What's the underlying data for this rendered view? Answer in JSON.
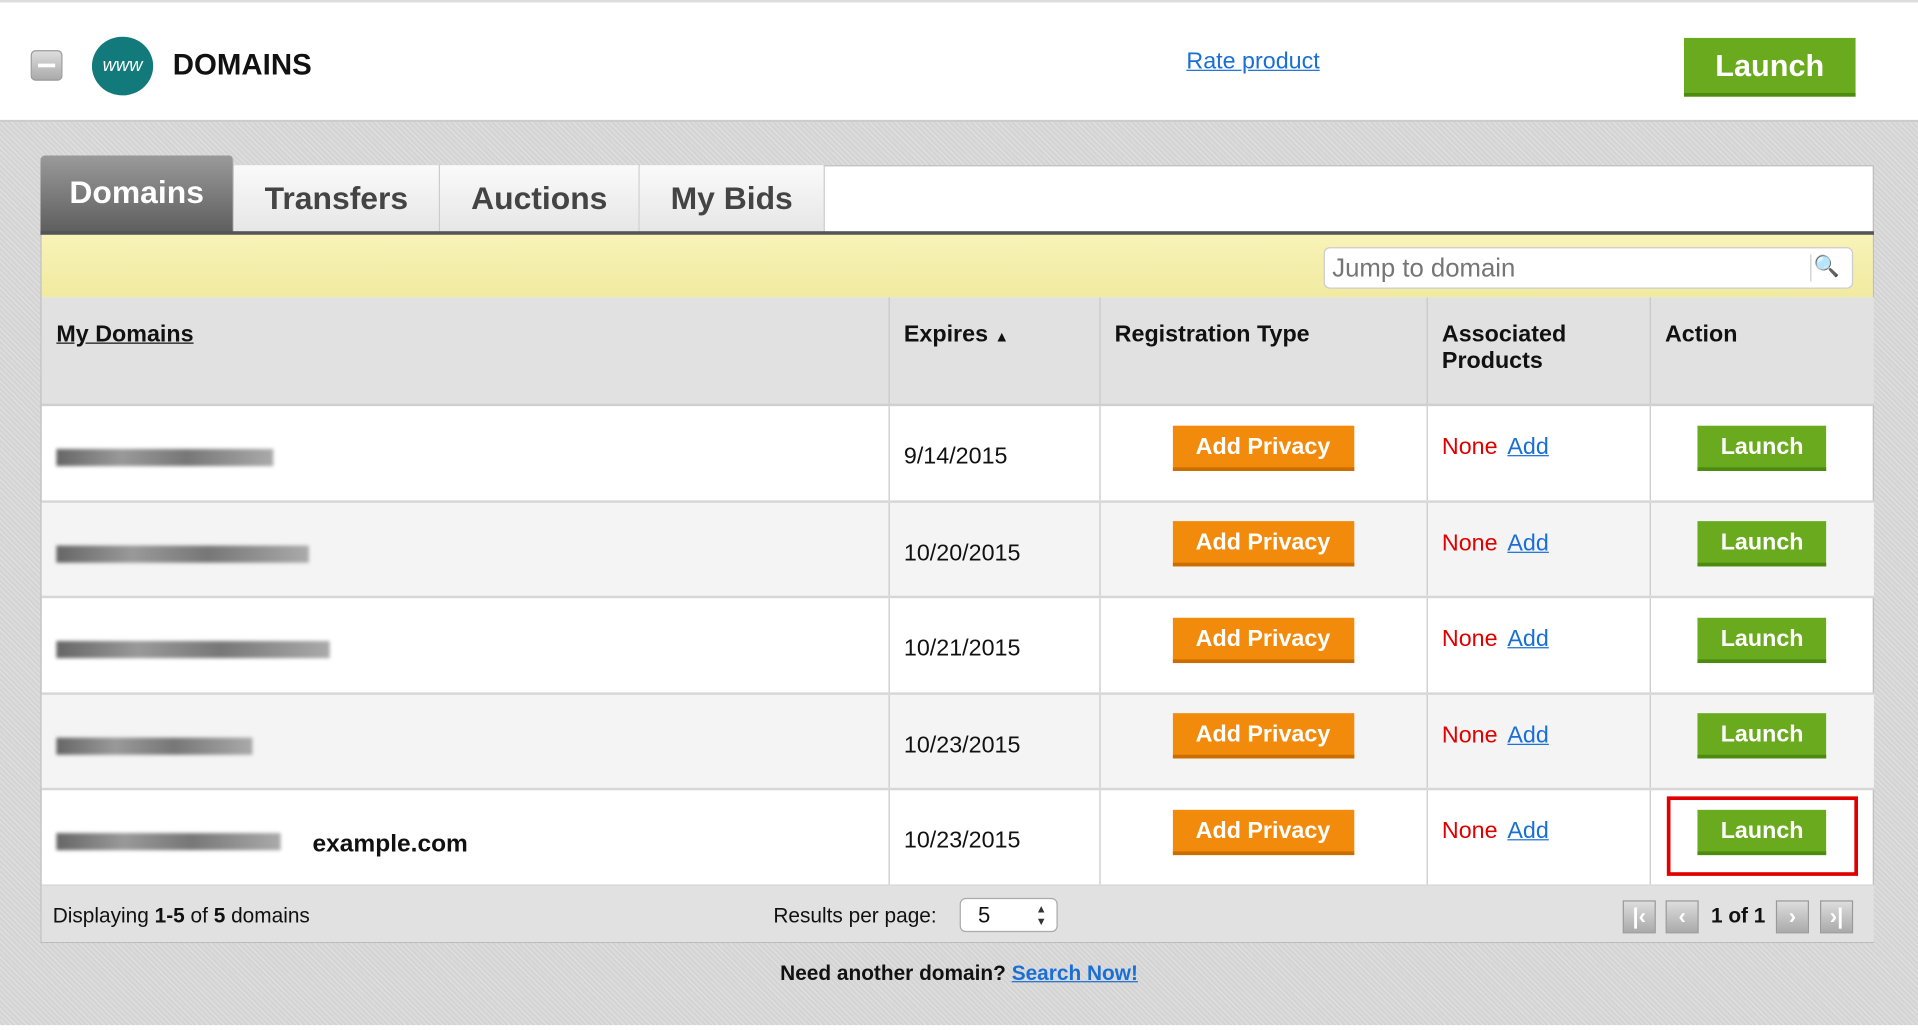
{
  "header": {
    "title": "DOMAINS",
    "globe_text": "www",
    "rate_link": "Rate product",
    "launch_label": "Launch"
  },
  "tabs": [
    {
      "label": "Domains",
      "active": true
    },
    {
      "label": "Transfers"
    },
    {
      "label": "Auctions"
    },
    {
      "label": "My Bids"
    }
  ],
  "search": {
    "placeholder": "Jump to domain"
  },
  "table": {
    "columns": [
      "My Domains",
      "Expires",
      "Registration Type",
      "Associated Products",
      "Action"
    ],
    "sort": "Expires ascending",
    "rows": [
      {
        "expires": "9/14/2015",
        "reg_button": "Add Privacy",
        "products": "None",
        "add_link": "Add",
        "action": "Launch"
      },
      {
        "expires": "10/20/2015",
        "reg_button": "Add Privacy",
        "products": "None",
        "add_link": "Add",
        "action": "Launch"
      },
      {
        "expires": "10/21/2015",
        "reg_button": "Add Privacy",
        "products": "None",
        "add_link": "Add",
        "action": "Launch"
      },
      {
        "expires": "10/23/2015",
        "reg_button": "Add Privacy",
        "products": "None",
        "add_link": "Add",
        "action": "Launch"
      },
      {
        "expires": "10/23/2015",
        "label": "example.com",
        "reg_button": "Add Privacy",
        "products": "None",
        "add_link": "Add",
        "action": "Launch",
        "highlighted": true
      }
    ]
  },
  "footer": {
    "displaying_prefix": "Displaying ",
    "range": "1-5",
    "of": " of ",
    "total": "5",
    "suffix": " domains",
    "rpp_label": "Results per page:",
    "rpp_value": "5",
    "page_info": "1 of 1"
  },
  "bottom": {
    "question": "Need another domain?",
    "link": "Search Now!"
  },
  "colors": {
    "launch": "#6aaa1e",
    "add_privacy": "#f28a0c",
    "none": "#e00000",
    "link": "#1a6fd6",
    "highlight": "#e00000"
  }
}
